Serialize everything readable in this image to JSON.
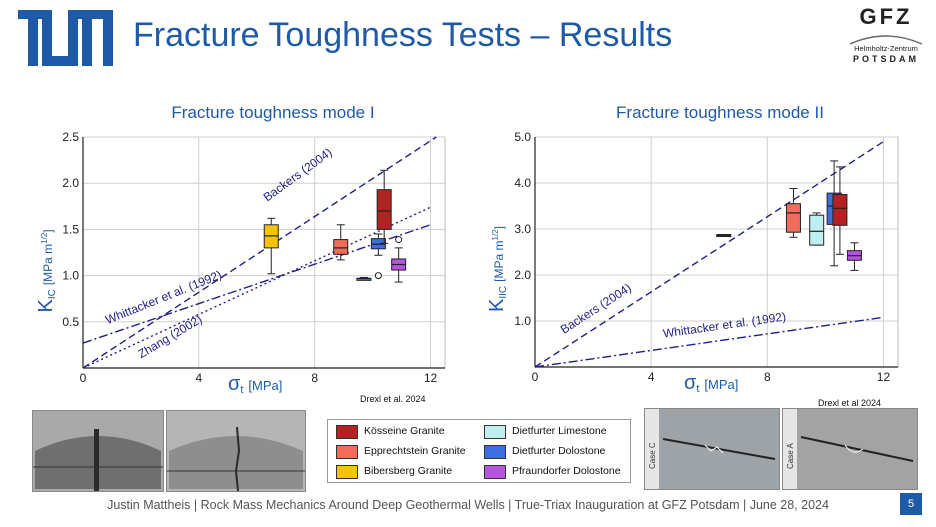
{
  "header": {
    "title": "Fracture Toughness Tests – Results",
    "tum_logo": "tum-logo",
    "gfz": {
      "name": "GFZ",
      "line1": "Helmholtz-Zentrum",
      "line2": "POTSDAM"
    }
  },
  "footer": {
    "text": "Justin Mattheis | Rock Mass Mechanics Around Deep Geothermal Wells | True-Triax Inauguration at GFZ Potsdam | June 28, 2024",
    "page_number": "5"
  },
  "legend": {
    "items": [
      {
        "label": "Kösseine Granite",
        "color": "#b22222"
      },
      {
        "label": "Epprechtstein Granite",
        "color": "#f26b5b"
      },
      {
        "label": "Bibersberg Granite",
        "color": "#f5c400"
      },
      {
        "label": "Dietfurter Limestone",
        "color": "#bfeef0"
      },
      {
        "label": "Dietfurter Dolostone",
        "color": "#3e6fe0"
      },
      {
        "label": "Pfraundorfer Dolostone",
        "color": "#b455e0"
      }
    ]
  },
  "photos": {
    "left_labels": [],
    "right_labels": [
      "Case C",
      "Case A"
    ]
  },
  "chart_data": [
    {
      "type": "box",
      "title": "Fracture toughness mode I",
      "xlabel_symbol": "σ",
      "xlabel_sub": "t",
      "xlabel_unit": "[MPa]",
      "ylabel_symbol": "K",
      "ylabel_sub": "IC",
      "ylabel_unit": "[MPa m",
      "ylabel_exp": "1/2",
      "ylabel_close": "]",
      "xlim": [
        0,
        12.5
      ],
      "ylim": [
        0,
        2.5
      ],
      "xticks": [
        "0",
        "4",
        "8",
        "12"
      ],
      "xtick_values": [
        0,
        4,
        8,
        12
      ],
      "yticks": [
        "0.5",
        "1.0",
        "1.5",
        "2.0",
        "2.5"
      ],
      "ytick_values": [
        0.5,
        1.0,
        1.5,
        2.0,
        2.5
      ],
      "source": "Drexl et al. 2024",
      "lines": [
        {
          "name": "Backers (2004)",
          "style": "dashed",
          "x": [
            0,
            12.2
          ],
          "y": [
            0,
            2.5
          ]
        },
        {
          "name": "Whittacker et al. (1992)",
          "style": "dashdot",
          "x": [
            0,
            12
          ],
          "y": [
            0.27,
            1.55
          ]
        },
        {
          "name": "Zhang (2002)",
          "style": "dotted",
          "x": [
            0,
            12
          ],
          "y": [
            0,
            1.74
          ]
        }
      ],
      "boxes": [
        {
          "x": 6.5,
          "q1": 1.3,
          "median": 1.43,
          "q3": 1.55,
          "whisker_low": 1.02,
          "whisker_high": 1.62,
          "color": "#f5c400"
        },
        {
          "x": 8.9,
          "q1": 1.23,
          "median": 1.3,
          "q3": 1.39,
          "whisker_low": 1.17,
          "whisker_high": 1.55,
          "color": "#f26b5b"
        },
        {
          "x": 9.7,
          "q1": 0.97,
          "median": 0.97,
          "q3": 0.97,
          "whisker_low": 0.96,
          "whisker_high": 0.98,
          "color": "#3e6fe0"
        },
        {
          "x": 10.2,
          "q1": 1.29,
          "median": 1.34,
          "q3": 1.4,
          "whisker_low": 1.22,
          "whisker_high": 1.45,
          "color": "#3e6fe0",
          "outliers": [
            1.0
          ]
        },
        {
          "x": 10.4,
          "q1": 1.5,
          "median": 1.7,
          "q3": 1.93,
          "whisker_low": 1.35,
          "whisker_high": 2.14,
          "color": "#b22222"
        },
        {
          "x": 10.9,
          "q1": 1.06,
          "median": 1.12,
          "q3": 1.18,
          "whisker_low": 0.93,
          "whisker_high": 1.3,
          "color": "#b455e0",
          "outliers": [
            1.39
          ]
        }
      ]
    },
    {
      "type": "box",
      "title": "Fracture toughness mode II",
      "xlabel_symbol": "σ",
      "xlabel_sub": "t",
      "xlabel_unit": "[MPa]",
      "ylabel_symbol": "K",
      "ylabel_sub": "IIC",
      "ylabel_unit": "[MPa m",
      "ylabel_exp": "1/2",
      "ylabel_close": "]",
      "xlim": [
        0,
        12.5
      ],
      "ylim": [
        0,
        5.0
      ],
      "xticks": [
        "0",
        "4",
        "8",
        "12"
      ],
      "xtick_values": [
        0,
        4,
        8,
        12
      ],
      "yticks": [
        "1.0",
        "2.0",
        "3.0",
        "4.0",
        "5.0"
      ],
      "ytick_values": [
        1.0,
        2.0,
        3.0,
        4.0,
        5.0
      ],
      "source": "Drexl et al 2024",
      "lines": [
        {
          "name": "Backers (2004)",
          "style": "dashed",
          "x": [
            0,
            12
          ],
          "y": [
            0,
            4.9
          ]
        },
        {
          "name": "Whittacker et al. (1992)",
          "style": "dashdot",
          "x": [
            0,
            12
          ],
          "y": [
            0,
            1.08
          ]
        }
      ],
      "boxes": [
        {
          "x": 6.5,
          "q1": 2.86,
          "median": 2.87,
          "q3": 2.88,
          "whisker_low": 2.86,
          "whisker_high": 2.88,
          "color": "#333333"
        },
        {
          "x": 8.9,
          "q1": 2.93,
          "median": 3.35,
          "q3": 3.55,
          "whisker_low": 2.82,
          "whisker_high": 3.88,
          "color": "#f26b5b"
        },
        {
          "x": 9.7,
          "q1": 2.65,
          "median": 2.95,
          "q3": 3.3,
          "whisker_low": 2.65,
          "whisker_high": 3.35,
          "color": "#bfeef0"
        },
        {
          "x": 10.3,
          "q1": 3.1,
          "median": 3.5,
          "q3": 3.78,
          "whisker_low": 2.2,
          "whisker_high": 4.48,
          "color": "#3e6fe0"
        },
        {
          "x": 10.5,
          "q1": 3.08,
          "median": 3.45,
          "q3": 3.75,
          "whisker_low": 2.45,
          "whisker_high": 4.35,
          "color": "#b22222"
        },
        {
          "x": 11.0,
          "q1": 2.32,
          "median": 2.42,
          "q3": 2.53,
          "whisker_low": 2.1,
          "whisker_high": 2.7,
          "color": "#b455e0"
        }
      ]
    }
  ]
}
